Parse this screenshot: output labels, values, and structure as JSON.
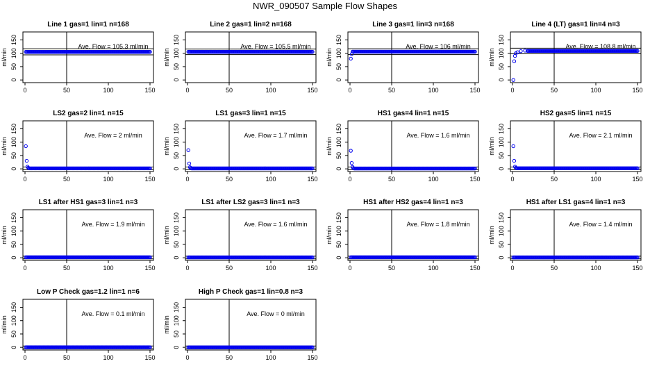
{
  "title": "NWR_090507  Sample Flow Shapes",
  "colors": {
    "points": "#0000ee",
    "axes": "#000000",
    "background": "#ffffff"
  },
  "chart_data": [
    {
      "type": "scatter",
      "title": "Line 1 gas=1 lin=1 n=168",
      "ylabel": "ml/min",
      "xlim": [
        0,
        150
      ],
      "ylim": [
        -10,
        180
      ],
      "xticks": [
        0,
        50,
        100,
        150
      ],
      "yticks": [
        0,
        50,
        100,
        150
      ],
      "vline": 50,
      "annotation": "Ave. Flow =  105.3  ml/min",
      "hlines": [
        94,
        117
      ],
      "start": [],
      "fill": [
        1,
        150,
        105.3
      ]
    },
    {
      "type": "scatter",
      "title": "Line 2 gas=1 lin=2 n=168",
      "ylabel": "ml/min",
      "xlim": [
        0,
        150
      ],
      "ylim": [
        -10,
        180
      ],
      "xticks": [
        0,
        50,
        100,
        150
      ],
      "yticks": [
        0,
        50,
        100,
        150
      ],
      "vline": 50,
      "annotation": "Ave. Flow =  105.5  ml/min",
      "hlines": [
        95,
        116
      ],
      "start": [],
      "fill": [
        1,
        150,
        105.5
      ]
    },
    {
      "type": "scatter",
      "title": "Line 3 gas=1 lin=3 n=168",
      "ylabel": "ml/min",
      "xlim": [
        0,
        150
      ],
      "ylim": [
        -10,
        180
      ],
      "xticks": [
        0,
        50,
        100,
        150
      ],
      "yticks": [
        0,
        50,
        100,
        150
      ],
      "vline": 50,
      "annotation": "Ave. Flow =  106  ml/min",
      "hlines": [
        95,
        117
      ],
      "start": [
        [
          1,
          80
        ],
        [
          2,
          97
        ]
      ],
      "fill": [
        3,
        150,
        106
      ]
    },
    {
      "type": "scatter",
      "title": "Line 4 (LT) gas=1 lin=4 n=3",
      "ylabel": "ml/min",
      "xlim": [
        0,
        150
      ],
      "ylim": [
        -10,
        180
      ],
      "xticks": [
        0,
        50,
        100,
        150
      ],
      "yticks": [
        0,
        50,
        100,
        150
      ],
      "vline": 50,
      "annotation": "Ave. Flow =  108.8  ml/min",
      "hlines": [
        98,
        119
      ],
      "start": [
        [
          1,
          0
        ],
        [
          2,
          70
        ],
        [
          3,
          90
        ],
        [
          4,
          100
        ],
        [
          6,
          104
        ],
        [
          10,
          108
        ],
        [
          15,
          110
        ]
      ],
      "fill": [
        18,
        150,
        108.8
      ]
    },
    {
      "type": "scatter",
      "title": "LS2 gas=2 lin=1 n=15",
      "ylabel": "ml/min",
      "xlim": [
        0,
        150
      ],
      "ylim": [
        -10,
        180
      ],
      "xticks": [
        0,
        50,
        100,
        150
      ],
      "yticks": [
        0,
        50,
        100,
        150
      ],
      "vline": 50,
      "annotation": "Ave. Flow =  2  ml/min",
      "hlines": [
        -3,
        7
      ],
      "start": [
        [
          1,
          85
        ],
        [
          2,
          30
        ],
        [
          3,
          8
        ],
        [
          4,
          4
        ]
      ],
      "fill": [
        5,
        150,
        2
      ]
    },
    {
      "type": "scatter",
      "title": "LS1 gas=3 lin=1 n=15",
      "ylabel": "ml/min",
      "xlim": [
        0,
        150
      ],
      "ylim": [
        -10,
        180
      ],
      "xticks": [
        0,
        50,
        100,
        150
      ],
      "yticks": [
        0,
        50,
        100,
        150
      ],
      "vline": 50,
      "annotation": "Ave. Flow =  1.7  ml/min",
      "hlines": [
        -3,
        7
      ],
      "start": [
        [
          1,
          70
        ],
        [
          2,
          20
        ],
        [
          3,
          6
        ],
        [
          4,
          3
        ]
      ],
      "fill": [
        5,
        150,
        1.7
      ]
    },
    {
      "type": "scatter",
      "title": "HS1 gas=4 lin=1 n=15",
      "ylabel": "ml/min",
      "xlim": [
        0,
        150
      ],
      "ylim": [
        -10,
        180
      ],
      "xticks": [
        0,
        50,
        100,
        150
      ],
      "yticks": [
        0,
        50,
        100,
        150
      ],
      "vline": 50,
      "annotation": "Ave. Flow =  1.6  ml/min",
      "hlines": [
        -3,
        7
      ],
      "start": [
        [
          1,
          68
        ],
        [
          2,
          22
        ],
        [
          3,
          7
        ],
        [
          4,
          3
        ]
      ],
      "fill": [
        5,
        150,
        1.6
      ]
    },
    {
      "type": "scatter",
      "title": "HS2 gas=5 lin=1 n=15",
      "ylabel": "ml/min",
      "xlim": [
        0,
        150
      ],
      "ylim": [
        -10,
        180
      ],
      "xticks": [
        0,
        50,
        100,
        150
      ],
      "yticks": [
        0,
        50,
        100,
        150
      ],
      "vline": 50,
      "annotation": "Ave. Flow =  2.1  ml/min",
      "hlines": [
        -3,
        7
      ],
      "start": [
        [
          1,
          85
        ],
        [
          2,
          30
        ],
        [
          3,
          8
        ],
        [
          4,
          4
        ]
      ],
      "fill": [
        5,
        150,
        2.1
      ]
    },
    {
      "type": "scatter",
      "title": "LS1 after HS1 gas=3 lin=1 n=3",
      "ylabel": "ml/min",
      "xlim": [
        0,
        150
      ],
      "ylim": [
        -10,
        180
      ],
      "xticks": [
        0,
        50,
        100,
        150
      ],
      "yticks": [
        0,
        50,
        100,
        150
      ],
      "vline": 50,
      "annotation": "Ave. Flow =  1.9  ml/min",
      "hlines": [
        -4,
        6
      ],
      "start": [],
      "fill": [
        1,
        150,
        1.9
      ]
    },
    {
      "type": "scatter",
      "title": "LS1 after LS2 gas=3 lin=1 n=3",
      "ylabel": "ml/min",
      "xlim": [
        0,
        150
      ],
      "ylim": [
        -10,
        180
      ],
      "xticks": [
        0,
        50,
        100,
        150
      ],
      "yticks": [
        0,
        50,
        100,
        150
      ],
      "vline": 50,
      "annotation": "Ave. Flow =  1.6  ml/min",
      "hlines": [
        -4,
        6
      ],
      "start": [],
      "fill": [
        1,
        150,
        1.6
      ]
    },
    {
      "type": "scatter",
      "title": "HS1 after HS2 gas=4 lin=1 n=3",
      "ylabel": "ml/min",
      "xlim": [
        0,
        150
      ],
      "ylim": [
        -10,
        180
      ],
      "xticks": [
        0,
        50,
        100,
        150
      ],
      "yticks": [
        0,
        50,
        100,
        150
      ],
      "vline": 50,
      "annotation": "Ave. Flow =  1.8  ml/min",
      "hlines": [
        -4,
        6
      ],
      "start": [],
      "fill": [
        1,
        150,
        1.8
      ]
    },
    {
      "type": "scatter",
      "title": "HS1 after LS1 gas=4 lin=1 n=3",
      "ylabel": "ml/min",
      "xlim": [
        0,
        150
      ],
      "ylim": [
        -10,
        180
      ],
      "xticks": [
        0,
        50,
        100,
        150
      ],
      "yticks": [
        0,
        50,
        100,
        150
      ],
      "vline": 50,
      "annotation": "Ave. Flow =  1.4  ml/min",
      "hlines": [
        -4,
        6
      ],
      "start": [],
      "fill": [
        1,
        150,
        1.4
      ]
    },
    {
      "type": "scatter",
      "title": "Low P Check gas=1.2 lin=1 n=6",
      "ylabel": "ml/min",
      "xlim": [
        0,
        150
      ],
      "ylim": [
        -10,
        180
      ],
      "xticks": [
        0,
        50,
        100,
        150
      ],
      "yticks": [
        0,
        50,
        100,
        150
      ],
      "vline": 50,
      "annotation": "Ave. Flow =  0.1  ml/min",
      "hlines": [
        -5,
        5
      ],
      "start": [],
      "fill": [
        1,
        150,
        0.1
      ]
    },
    {
      "type": "scatter",
      "title": "High P Check gas=1 lin=0.8 n=3",
      "ylabel": "ml/min",
      "xlim": [
        0,
        150
      ],
      "ylim": [
        -10,
        180
      ],
      "xticks": [
        0,
        50,
        100,
        150
      ],
      "yticks": [
        0,
        50,
        100,
        150
      ],
      "vline": 50,
      "annotation": "Ave. Flow =  0  ml/min",
      "hlines": [
        -5,
        5
      ],
      "start": [],
      "fill": [
        1,
        150,
        0
      ]
    }
  ]
}
